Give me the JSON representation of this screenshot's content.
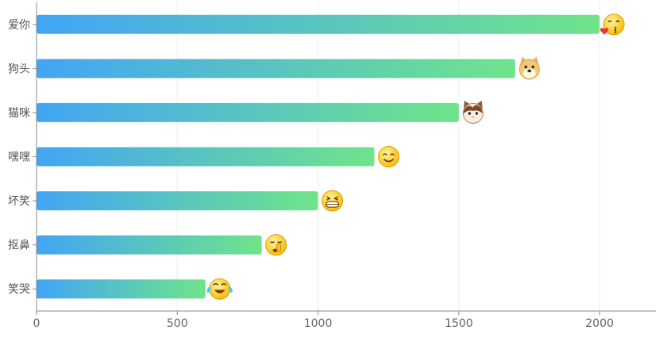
{
  "chart_data": {
    "type": "bar",
    "orientation": "horizontal",
    "categories": [
      "爱你",
      "狗头",
      "猫咪",
      "嘿嘿",
      "坏笑",
      "抠鼻",
      "笑哭"
    ],
    "values": [
      2000,
      1700,
      1500,
      1200,
      1000,
      800,
      600
    ],
    "xlim": [
      0,
      2200
    ],
    "xticks": [
      0,
      500,
      1000,
      1500,
      2000
    ],
    "title": "",
    "xlabel": "",
    "ylabel": "",
    "grid": "vertical",
    "legend": "none",
    "bar_gradient": [
      "#42a5f5",
      "#6fe48a"
    ],
    "axis_color": "#888888",
    "grid_color": "#eeeeee",
    "emoji_icons": [
      "kiss-heart-emoji-icon",
      "doge-emoji-icon",
      "cat-emoji-icon",
      "hehe-emoji-icon",
      "grin-emoji-icon",
      "pick-nose-emoji-icon",
      "laugh-cry-emoji-icon"
    ]
  }
}
